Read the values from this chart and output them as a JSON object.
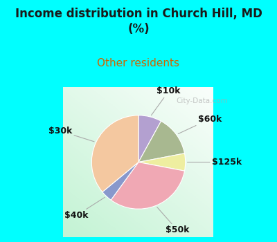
{
  "title": "Income distribution in Church Hill, MD\n(%)",
  "subtitle": "Other residents",
  "title_color": "#1a1a1a",
  "subtitle_color": "#cc6600",
  "background_color": "#00ffff",
  "slices": [
    {
      "label": "$10k",
      "value": 8,
      "color": "#b3a0d0"
    },
    {
      "label": "$60k",
      "value": 14,
      "color": "#a8b890"
    },
    {
      "label": "$125k",
      "value": 6,
      "color": "#eeeea0"
    },
    {
      "label": "$50k",
      "value": 32,
      "color": "#f0a8b4"
    },
    {
      "label": "$40k",
      "value": 4,
      "color": "#8898cc"
    },
    {
      "label": "$30k",
      "value": 36,
      "color": "#f4c8a0"
    }
  ],
  "watermark": "City-Data.com",
  "figsize": [
    4.0,
    3.5
  ],
  "dpi": 100,
  "title_fontsize": 12,
  "subtitle_fontsize": 11,
  "label_fontsize": 9
}
